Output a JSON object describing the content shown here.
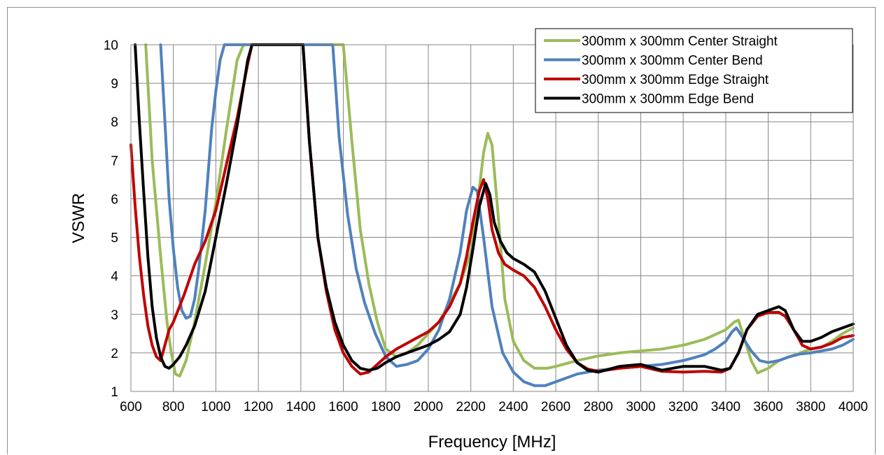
{
  "chart_data": {
    "type": "line",
    "xlabel": "Frequency [MHz]",
    "ylabel": "VSWR",
    "xlim": [
      600,
      4000
    ],
    "ylim": [
      1,
      10
    ],
    "xticks": [
      600,
      800,
      1000,
      1200,
      1400,
      1600,
      1800,
      2000,
      2200,
      2400,
      2600,
      2800,
      3000,
      3200,
      3400,
      3600,
      3800,
      4000
    ],
    "yticks": [
      1,
      2,
      3,
      4,
      5,
      6,
      7,
      8,
      9,
      10
    ],
    "grid": true,
    "legend_position": "top-right",
    "series": [
      {
        "name": "300mm x 300mm Center Straight",
        "color": "#9bbb59",
        "x": [
          670,
          700,
          740,
          770,
          790,
          810,
          830,
          860,
          900,
          950,
          1000,
          1050,
          1100,
          1130,
          1600,
          1640,
          1680,
          1720,
          1760,
          1800,
          1850,
          1900,
          1950,
          2000,
          2050,
          2100,
          2150,
          2200,
          2230,
          2260,
          2280,
          2300,
          2330,
          2360,
          2400,
          2450,
          2500,
          2560,
          2600,
          2700,
          2800,
          2900,
          3000,
          3100,
          3200,
          3300,
          3400,
          3440,
          3460,
          3480,
          3520,
          3550,
          3600,
          3650,
          3700,
          3750,
          3800,
          3850,
          3900,
          3950,
          4000
        ],
        "y": [
          10,
          7,
          4.5,
          2.8,
          2.0,
          1.45,
          1.4,
          1.8,
          2.8,
          4.3,
          5.9,
          7.8,
          9.6,
          10,
          10,
          7.5,
          5.2,
          3.8,
          2.8,
          2.1,
          1.9,
          2.0,
          2.2,
          2.5,
          2.8,
          3.3,
          3.8,
          4.6,
          5.8,
          7.2,
          7.7,
          7.4,
          5.5,
          3.4,
          2.3,
          1.8,
          1.6,
          1.6,
          1.65,
          1.8,
          1.92,
          2.0,
          2.05,
          2.1,
          2.2,
          2.35,
          2.6,
          2.8,
          2.85,
          2.5,
          1.8,
          1.48,
          1.6,
          1.8,
          1.9,
          2.0,
          2.1,
          2.15,
          2.3,
          2.5,
          2.65
        ]
      },
      {
        "name": "300mm x 300mm Center Bend",
        "color": "#4f81bd",
        "x": [
          740,
          760,
          780,
          800,
          820,
          840,
          860,
          880,
          900,
          920,
          950,
          980,
          1000,
          1020,
          1040,
          1550,
          1580,
          1620,
          1660,
          1700,
          1750,
          1800,
          1850,
          1900,
          1950,
          2000,
          2050,
          2100,
          2150,
          2180,
          2210,
          2230,
          2260,
          2300,
          2350,
          2400,
          2450,
          2500,
          2550,
          2600,
          2700,
          2800,
          2900,
          3000,
          3100,
          3200,
          3300,
          3350,
          3400,
          3430,
          3450,
          3480,
          3520,
          3560,
          3600,
          3650,
          3700,
          3750,
          3800,
          3850,
          3900,
          3950,
          4000
        ],
        "y": [
          10,
          8,
          6,
          4.7,
          3.7,
          3.1,
          2.9,
          2.95,
          3.4,
          4.2,
          5.7,
          7.8,
          8.8,
          9.6,
          10,
          10,
          7.6,
          5.6,
          4.2,
          3.3,
          2.5,
          1.9,
          1.65,
          1.7,
          1.8,
          2.1,
          2.6,
          3.4,
          4.6,
          5.7,
          6.3,
          6.2,
          5.0,
          3.2,
          2.0,
          1.5,
          1.25,
          1.15,
          1.15,
          1.25,
          1.45,
          1.55,
          1.6,
          1.65,
          1.7,
          1.8,
          1.95,
          2.1,
          2.3,
          2.55,
          2.65,
          2.4,
          2.05,
          1.8,
          1.75,
          1.8,
          1.9,
          1.97,
          2.0,
          2.05,
          2.1,
          2.2,
          2.35
        ]
      },
      {
        "name": "300mm x 300mm Edge Straight",
        "color": "#c00000",
        "x": [
          600,
          620,
          640,
          660,
          680,
          700,
          720,
          740,
          760,
          780,
          800,
          850,
          900,
          950,
          1000,
          1050,
          1100,
          1150,
          1170,
          1410,
          1440,
          1480,
          1520,
          1560,
          1600,
          1640,
          1680,
          1720,
          1760,
          1800,
          1850,
          1900,
          1950,
          2000,
          2050,
          2100,
          2150,
          2180,
          2210,
          2240,
          2260,
          2280,
          2300,
          2330,
          2360,
          2400,
          2450,
          2500,
          2550,
          2600,
          2650,
          2700,
          2750,
          2800,
          2900,
          3000,
          3100,
          3200,
          3300,
          3380,
          3420,
          3460,
          3500,
          3550,
          3600,
          3650,
          3680,
          3720,
          3760,
          3800,
          3850,
          3900,
          3950,
          4000
        ],
        "y": [
          7.4,
          5.8,
          4.5,
          3.5,
          2.7,
          2.2,
          1.9,
          1.8,
          2.2,
          2.6,
          2.8,
          3.5,
          4.3,
          4.9,
          5.7,
          6.9,
          8.1,
          9.5,
          10,
          10,
          7.5,
          5.0,
          3.6,
          2.6,
          2.0,
          1.65,
          1.45,
          1.5,
          1.7,
          1.9,
          2.1,
          2.25,
          2.4,
          2.55,
          2.8,
          3.2,
          3.8,
          4.5,
          5.4,
          6.2,
          6.5,
          6.0,
          5.2,
          4.6,
          4.3,
          4.15,
          4.0,
          3.7,
          3.2,
          2.6,
          2.1,
          1.75,
          1.58,
          1.52,
          1.6,
          1.65,
          1.52,
          1.5,
          1.52,
          1.5,
          1.6,
          2.0,
          2.6,
          2.95,
          3.05,
          3.05,
          2.95,
          2.6,
          2.2,
          2.1,
          2.15,
          2.25,
          2.4,
          2.45
        ]
      },
      {
        "name": "300mm x 300mm Edge Bend",
        "color": "#000000",
        "x": [
          620,
          640,
          660,
          680,
          700,
          720,
          740,
          760,
          780,
          800,
          830,
          860,
          900,
          950,
          1000,
          1050,
          1100,
          1150,
          1170,
          1410,
          1440,
          1480,
          1520,
          1560,
          1600,
          1640,
          1680,
          1720,
          1760,
          1800,
          1850,
          1900,
          1950,
          2000,
          2050,
          2100,
          2150,
          2180,
          2210,
          2240,
          2270,
          2290,
          2310,
          2340,
          2370,
          2400,
          2450,
          2500,
          2550,
          2600,
          2650,
          2700,
          2750,
          2800,
          2900,
          3000,
          3100,
          3200,
          3300,
          3380,
          3420,
          3460,
          3500,
          3550,
          3600,
          3650,
          3680,
          3720,
          3760,
          3800,
          3850,
          3900,
          3950,
          4000
        ],
        "y": [
          10,
          8,
          6.2,
          4.5,
          3.2,
          2.4,
          1.9,
          1.65,
          1.6,
          1.7,
          1.9,
          2.2,
          2.7,
          3.6,
          5.0,
          6.4,
          7.9,
          9.6,
          10,
          10,
          7.5,
          5.0,
          3.7,
          2.8,
          2.2,
          1.8,
          1.6,
          1.55,
          1.6,
          1.75,
          1.9,
          2.0,
          2.1,
          2.2,
          2.35,
          2.55,
          3.0,
          3.7,
          4.7,
          5.8,
          6.4,
          6.1,
          5.4,
          4.9,
          4.6,
          4.45,
          4.3,
          4.1,
          3.6,
          2.9,
          2.2,
          1.75,
          1.55,
          1.5,
          1.65,
          1.7,
          1.55,
          1.65,
          1.65,
          1.55,
          1.6,
          2.0,
          2.6,
          3.0,
          3.1,
          3.2,
          3.1,
          2.6,
          2.3,
          2.3,
          2.4,
          2.55,
          2.65,
          2.75
        ]
      }
    ]
  }
}
